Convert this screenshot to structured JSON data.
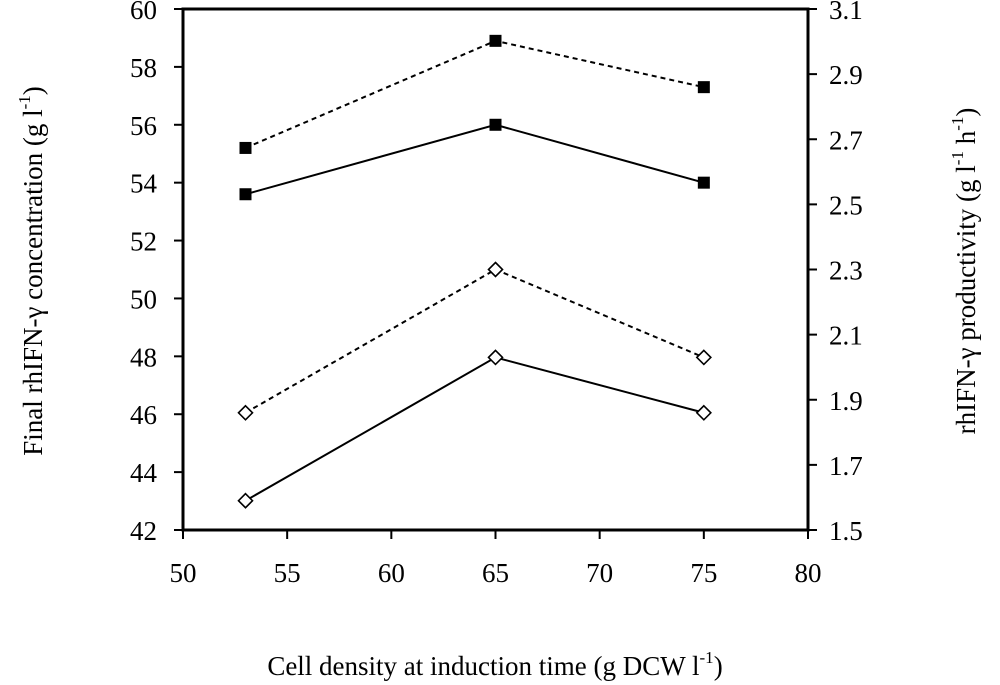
{
  "chart_data": {
    "type": "line",
    "x": [
      53,
      65,
      75
    ],
    "xlabel": {
      "main": "Cell density at induction time (g DCW l",
      "sup": "-1",
      "end": ")"
    },
    "ylabel_left": {
      "main": "Final rhIFN-γ concentration (g l",
      "sup": "-1",
      "end": ")"
    },
    "ylabel_right": {
      "main": "rhIFN-γ productivity (g l",
      "sup1": "-1",
      "mid": " h",
      "sup2": "-1",
      "end": ")"
    },
    "xlim": [
      50,
      80
    ],
    "ylim_left": [
      42,
      60
    ],
    "ylim_right": [
      1.5,
      3.1
    ],
    "x_ticks": [
      "50",
      "55",
      "60",
      "65",
      "70",
      "75",
      "80"
    ],
    "y_left_ticks": [
      "42",
      "44",
      "46",
      "48",
      "50",
      "52",
      "54",
      "56",
      "58",
      "60"
    ],
    "y_right_ticks": [
      "1.5",
      "1.7",
      "1.9",
      "2.1",
      "2.3",
      "2.5",
      "2.7",
      "2.9",
      "3.1"
    ],
    "series": [
      {
        "axis": "left",
        "marker": "filled-square",
        "line": "dashed",
        "values": [
          55.2,
          58.9,
          57.3
        ]
      },
      {
        "axis": "left",
        "marker": "filled-square",
        "line": "solid",
        "values": [
          53.6,
          56.0,
          54.0
        ]
      },
      {
        "axis": "right",
        "marker": "open-diamond",
        "line": "dashed",
        "values": [
          1.86,
          2.3,
          2.03
        ]
      },
      {
        "axis": "right",
        "marker": "open-diamond",
        "line": "solid",
        "values": [
          1.59,
          2.03,
          1.86
        ]
      }
    ],
    "grid": false,
    "legend": "none"
  }
}
